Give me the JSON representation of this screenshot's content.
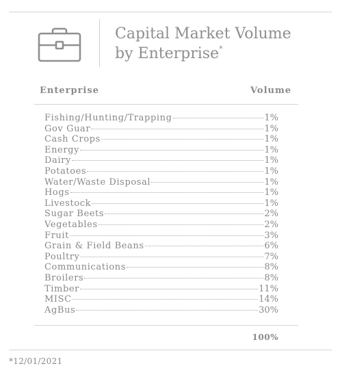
{
  "header": {
    "title_line1": "Capital Market Volume",
    "title_line2": "by Enterprise",
    "title_mark": "*",
    "icon": "briefcase-icon"
  },
  "table": {
    "columns": {
      "enterprise": "Enterprise",
      "volume": "Volume"
    },
    "rows": [
      {
        "enterprise": "Fishing/Hunting/Trapping",
        "volume": "1%"
      },
      {
        "enterprise": "Gov Guar",
        "volume": "1%"
      },
      {
        "enterprise": "Cash Crops",
        "volume": "1%"
      },
      {
        "enterprise": "Energy",
        "volume": "1%"
      },
      {
        "enterprise": "Dairy",
        "volume": "1%"
      },
      {
        "enterprise": "Potatoes",
        "volume": "1%"
      },
      {
        "enterprise": "Water/Waste Disposal",
        "volume": "1%"
      },
      {
        "enterprise": "Hogs",
        "volume": "1%"
      },
      {
        "enterprise": "Livestock",
        "volume": "1%"
      },
      {
        "enterprise": "Sugar Beets",
        "volume": "2%"
      },
      {
        "enterprise": "Vegetables",
        "volume": "2%"
      },
      {
        "enterprise": "Fruit",
        "volume": "3%"
      },
      {
        "enterprise": "Grain & Field Beans",
        "volume": "6%"
      },
      {
        "enterprise": "Poultry",
        "volume": "7%"
      },
      {
        "enterprise": "Communications",
        "volume": "8%"
      },
      {
        "enterprise": "Broilers",
        "volume": "8%"
      },
      {
        "enterprise": "Timber",
        "volume": "11%"
      },
      {
        "enterprise": "MISC",
        "volume": "14%"
      },
      {
        "enterprise": "AgBus",
        "volume": "30%"
      }
    ],
    "total": "100%"
  },
  "footnote": "*12/01/2021",
  "colors": {
    "text": "#888888",
    "rule": "#d4d4d4"
  }
}
